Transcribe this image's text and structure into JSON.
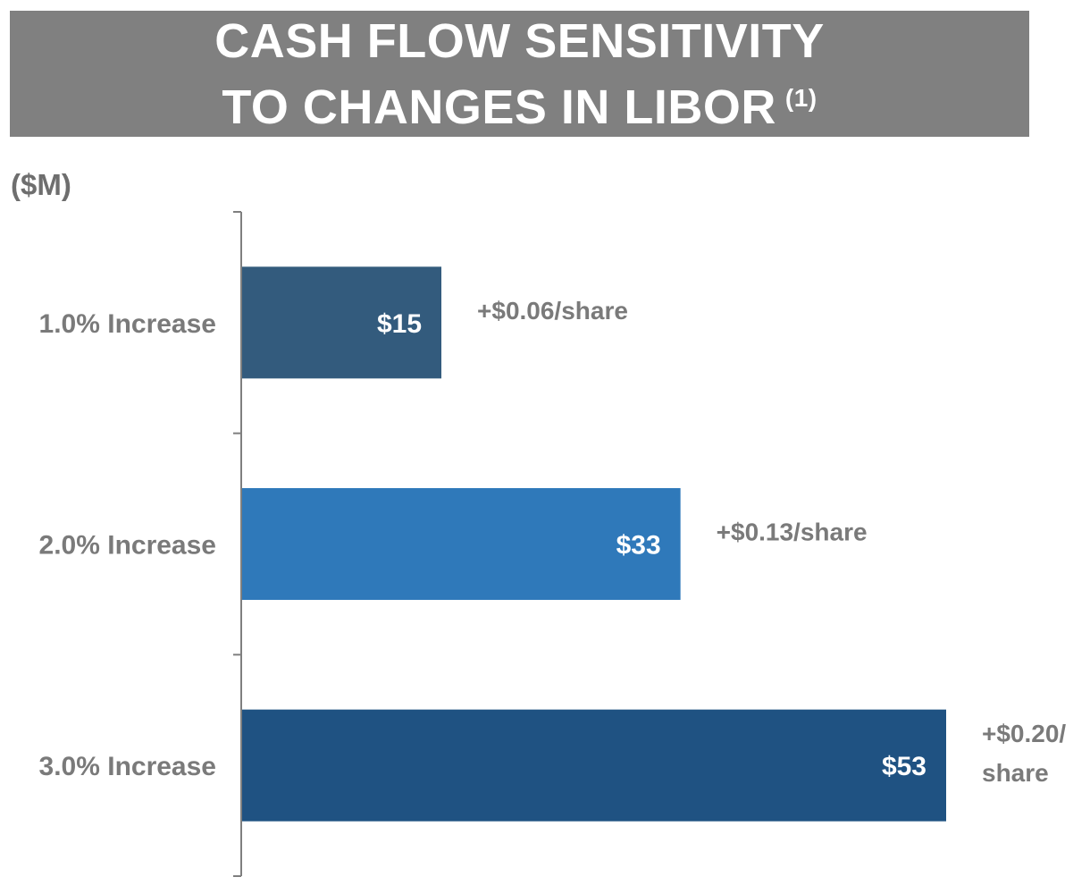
{
  "title": {
    "line1": "CASH FLOW SENSITIVITY",
    "line2": "TO CHANGES IN LIBOR",
    "footnote": "(1)"
  },
  "units_label": "($M)",
  "chart_data": {
    "type": "bar",
    "orientation": "horizontal",
    "title": "CASH FLOW SENSITIVITY TO CHANGES IN LIBOR (1)",
    "ylabel": "($M)",
    "xlabel": "",
    "categories": [
      "1.0% Increase",
      "2.0% Increase",
      "3.0% Increase"
    ],
    "values": [
      15,
      33,
      53
    ],
    "value_labels": [
      "$15",
      "$33",
      "$53"
    ],
    "annotations": [
      [
        "+$0.06/share"
      ],
      [
        "+$0.13/share"
      ],
      [
        "+$0.20/",
        "share"
      ]
    ],
    "colors": [
      "#335b7d",
      "#2f79ba",
      "#1f5282"
    ],
    "xlim": [
      0,
      53
    ],
    "grid": false
  }
}
